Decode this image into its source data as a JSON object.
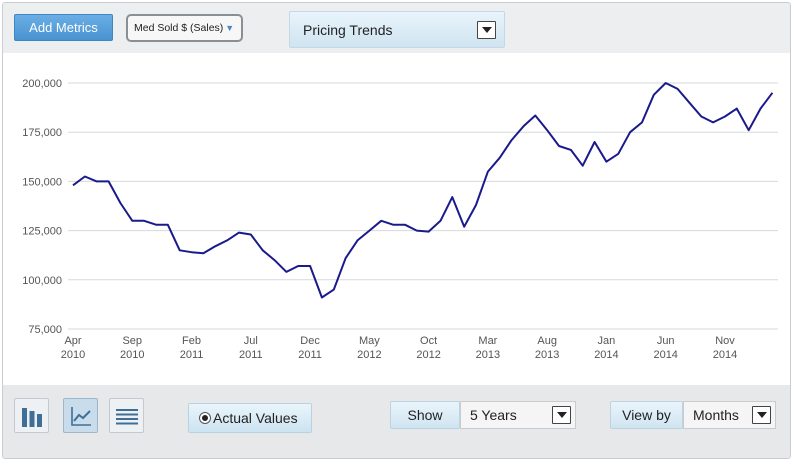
{
  "toolbar": {
    "add_metrics_label": "Add Metrics",
    "metric_select_value": "Med Sold $ (Sales)",
    "chart_type_select_value": "Pricing Trends"
  },
  "bottom": {
    "actual_values_label": "Actual Values",
    "show_label": "Show",
    "range_value": "5 Years",
    "view_by_label": "View by",
    "view_by_value": "Months"
  },
  "chart_data": {
    "type": "line",
    "title": "",
    "xlabel": "",
    "ylabel": "",
    "ylim": [
      75000,
      200000
    ],
    "y_ticks": [
      75000,
      100000,
      125000,
      150000,
      175000,
      200000
    ],
    "y_tick_labels": [
      "75,000",
      "100,000",
      "125,000",
      "150,000",
      "175,000",
      "200,000"
    ],
    "x_tick_labels": [
      {
        "index": 0,
        "month": "Apr",
        "year": "2010"
      },
      {
        "index": 5,
        "month": "Sep",
        "year": "2010"
      },
      {
        "index": 10,
        "month": "Feb",
        "year": "2011"
      },
      {
        "index": 15,
        "month": "Jul",
        "year": "2011"
      },
      {
        "index": 20,
        "month": "Dec",
        "year": "2011"
      },
      {
        "index": 25,
        "month": "May",
        "year": "2012"
      },
      {
        "index": 30,
        "month": "Oct",
        "year": "2012"
      },
      {
        "index": 35,
        "month": "Mar",
        "year": "2013"
      },
      {
        "index": 40,
        "month": "Aug",
        "year": "2013"
      },
      {
        "index": 45,
        "month": "Jan",
        "year": "2014"
      },
      {
        "index": 50,
        "month": "Jun",
        "year": "2014"
      },
      {
        "index": 55,
        "month": "Nov",
        "year": "2014"
      }
    ],
    "grid": true,
    "line_color": "#1a1a8c",
    "series": [
      {
        "values": [
          148000,
          152500,
          150000,
          150000,
          139000,
          130000,
          130000,
          128000,
          128000,
          115000,
          114000,
          113500,
          117000,
          120000,
          124000,
          123000,
          115000,
          110000,
          104000,
          107000,
          107000,
          91000,
          95000,
          111000,
          120000,
          125000,
          130000,
          128000,
          128000,
          125000,
          124500,
          130000,
          142000,
          127000,
          138000,
          155000,
          162000,
          171000,
          178000,
          183500,
          176000,
          168000,
          166000,
          158000,
          170000,
          160000,
          164000,
          175000,
          180000,
          194000,
          200000,
          197000,
          190000,
          183000,
          180000,
          183000,
          187000,
          176000,
          187000,
          195000
        ]
      }
    ]
  }
}
